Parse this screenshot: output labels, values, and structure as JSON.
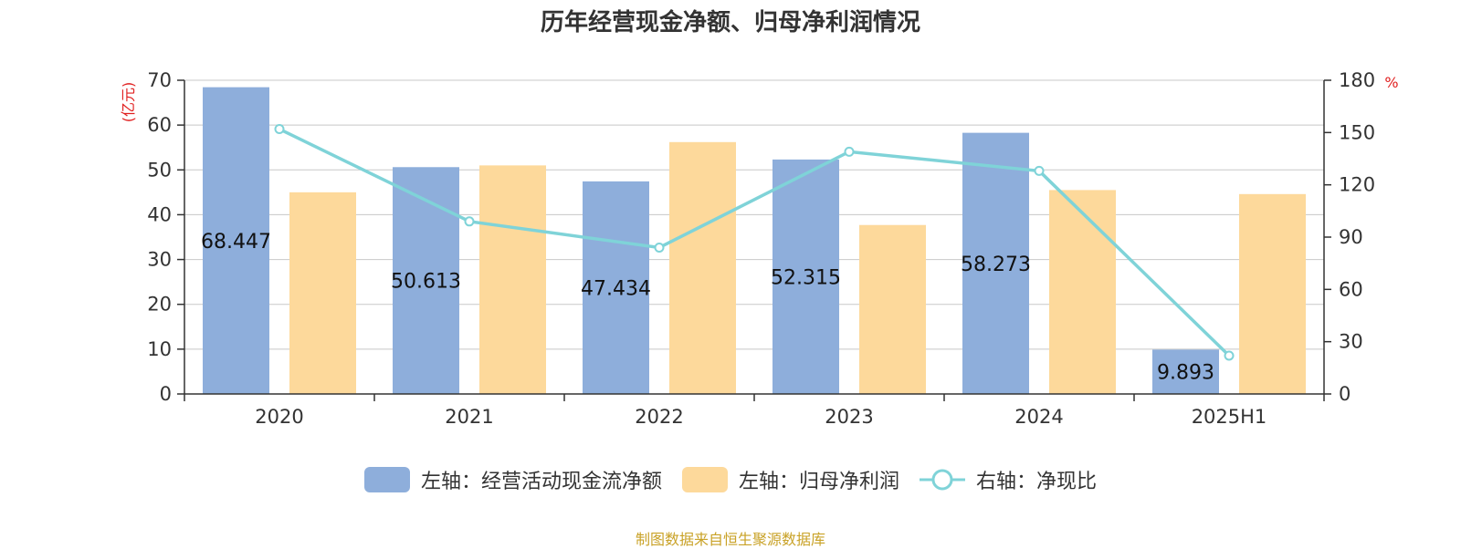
{
  "chart_data": {
    "type": "bar",
    "title": "历年经营现金净额、归母净利润情况",
    "categories": [
      "2020",
      "2021",
      "2022",
      "2023",
      "2024",
      "2025H1"
    ],
    "series": [
      {
        "name": "左轴：经营活动现金流净额",
        "axis": "left",
        "type": "bar",
        "color": "#8eaedb",
        "values": [
          68.447,
          50.613,
          47.434,
          52.315,
          58.273,
          9.893
        ],
        "data_labels": [
          "68.447",
          "50.613",
          "47.434",
          "52.315",
          "58.273",
          "9.893"
        ]
      },
      {
        "name": "左轴：归母净利润",
        "axis": "left",
        "type": "bar",
        "color": "#fdd99b",
        "values": [
          45.0,
          51.0,
          56.2,
          37.7,
          45.5,
          44.6
        ]
      },
      {
        "name": "右轴：净现比",
        "axis": "right",
        "type": "line",
        "color": "#7fd3d8",
        "values": [
          152,
          99,
          84,
          139,
          128,
          22
        ]
      }
    ],
    "left_axis": {
      "unit": "(亿元)",
      "ylim": [
        0,
        70
      ],
      "ticks": [
        "0",
        "10",
        "20",
        "30",
        "40",
        "50",
        "60",
        "70"
      ]
    },
    "right_axis": {
      "unit": "%",
      "ylim": [
        0,
        180
      ],
      "ticks": [
        "0",
        "30",
        "60",
        "90",
        "120",
        "150",
        "180"
      ]
    },
    "grid": true,
    "legend_position": "bottom"
  },
  "legend": {
    "items": [
      {
        "label": "左轴：经营活动现金流净额",
        "color": "#8eaedb",
        "shape": "bar"
      },
      {
        "label": "左轴：归母净利润",
        "color": "#fdd99b",
        "shape": "bar"
      },
      {
        "label": "右轴：净现比",
        "color": "#7fd3d8",
        "shape": "line"
      }
    ]
  },
  "footer": {
    "source": "制图数据来自恒生聚源数据库"
  }
}
